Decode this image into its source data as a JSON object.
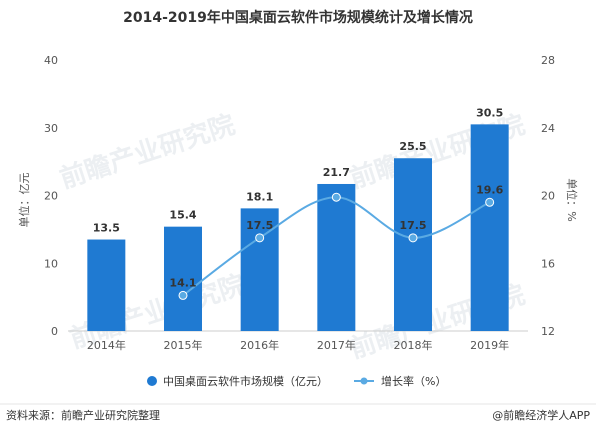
{
  "chart_data": {
    "type": "bar",
    "title": "2014-2019年中国桌面云软件市场规模统计及增长情况",
    "categories": [
      "2014年",
      "2015年",
      "2016年",
      "2017年",
      "2018年",
      "2019年"
    ],
    "series": [
      {
        "name": "中国桌面云软件市场规模（亿元）",
        "type": "bar",
        "axis": "left",
        "color": "#1f7ad2",
        "values": [
          13.5,
          15.4,
          18.1,
          21.7,
          25.5,
          30.5
        ],
        "labels": [
          "13.5",
          "15.4",
          "18.1",
          "21.7",
          "25.5",
          "30.5"
        ]
      },
      {
        "name": "增长率（%）",
        "type": "line",
        "axis": "right",
        "color": "#5aaae3",
        "values": [
          null,
          14.1,
          17.5,
          19.9,
          17.5,
          19.6
        ],
        "labels": [
          "",
          "14.1",
          "17.5",
          "",
          "17.5",
          "19.6"
        ]
      }
    ],
    "ylabel": "单位：亿元",
    "y2label": "单位：%",
    "ylim": [
      0,
      40
    ],
    "y2lim": [
      12,
      28
    ],
    "yticks": [
      "0",
      "10",
      "20",
      "30",
      "40"
    ],
    "y2ticks": [
      "12",
      "16",
      "20",
      "24",
      "28"
    ],
    "grid": false,
    "legend": "bottom"
  },
  "footer": {
    "source": "资料来源：前瞻产业研究院整理",
    "brand": "@前瞻经济学人APP"
  },
  "watermark": {
    "text": "前瞻产业研究院"
  }
}
